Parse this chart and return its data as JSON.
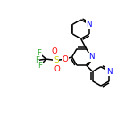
{
  "background_color": "#ffffff",
  "bond_color": "#000000",
  "atom_colors": {
    "N": "#0000ff",
    "O": "#ff0000",
    "S": "#cccc00",
    "F": "#33aa33",
    "C": "#000000"
  },
  "line_width": 1.1,
  "font_size": 6.2,
  "fig_size": [
    1.5,
    1.5
  ],
  "dpi": 100,
  "xlim": [
    0,
    10
  ],
  "ylim": [
    0,
    10
  ]
}
